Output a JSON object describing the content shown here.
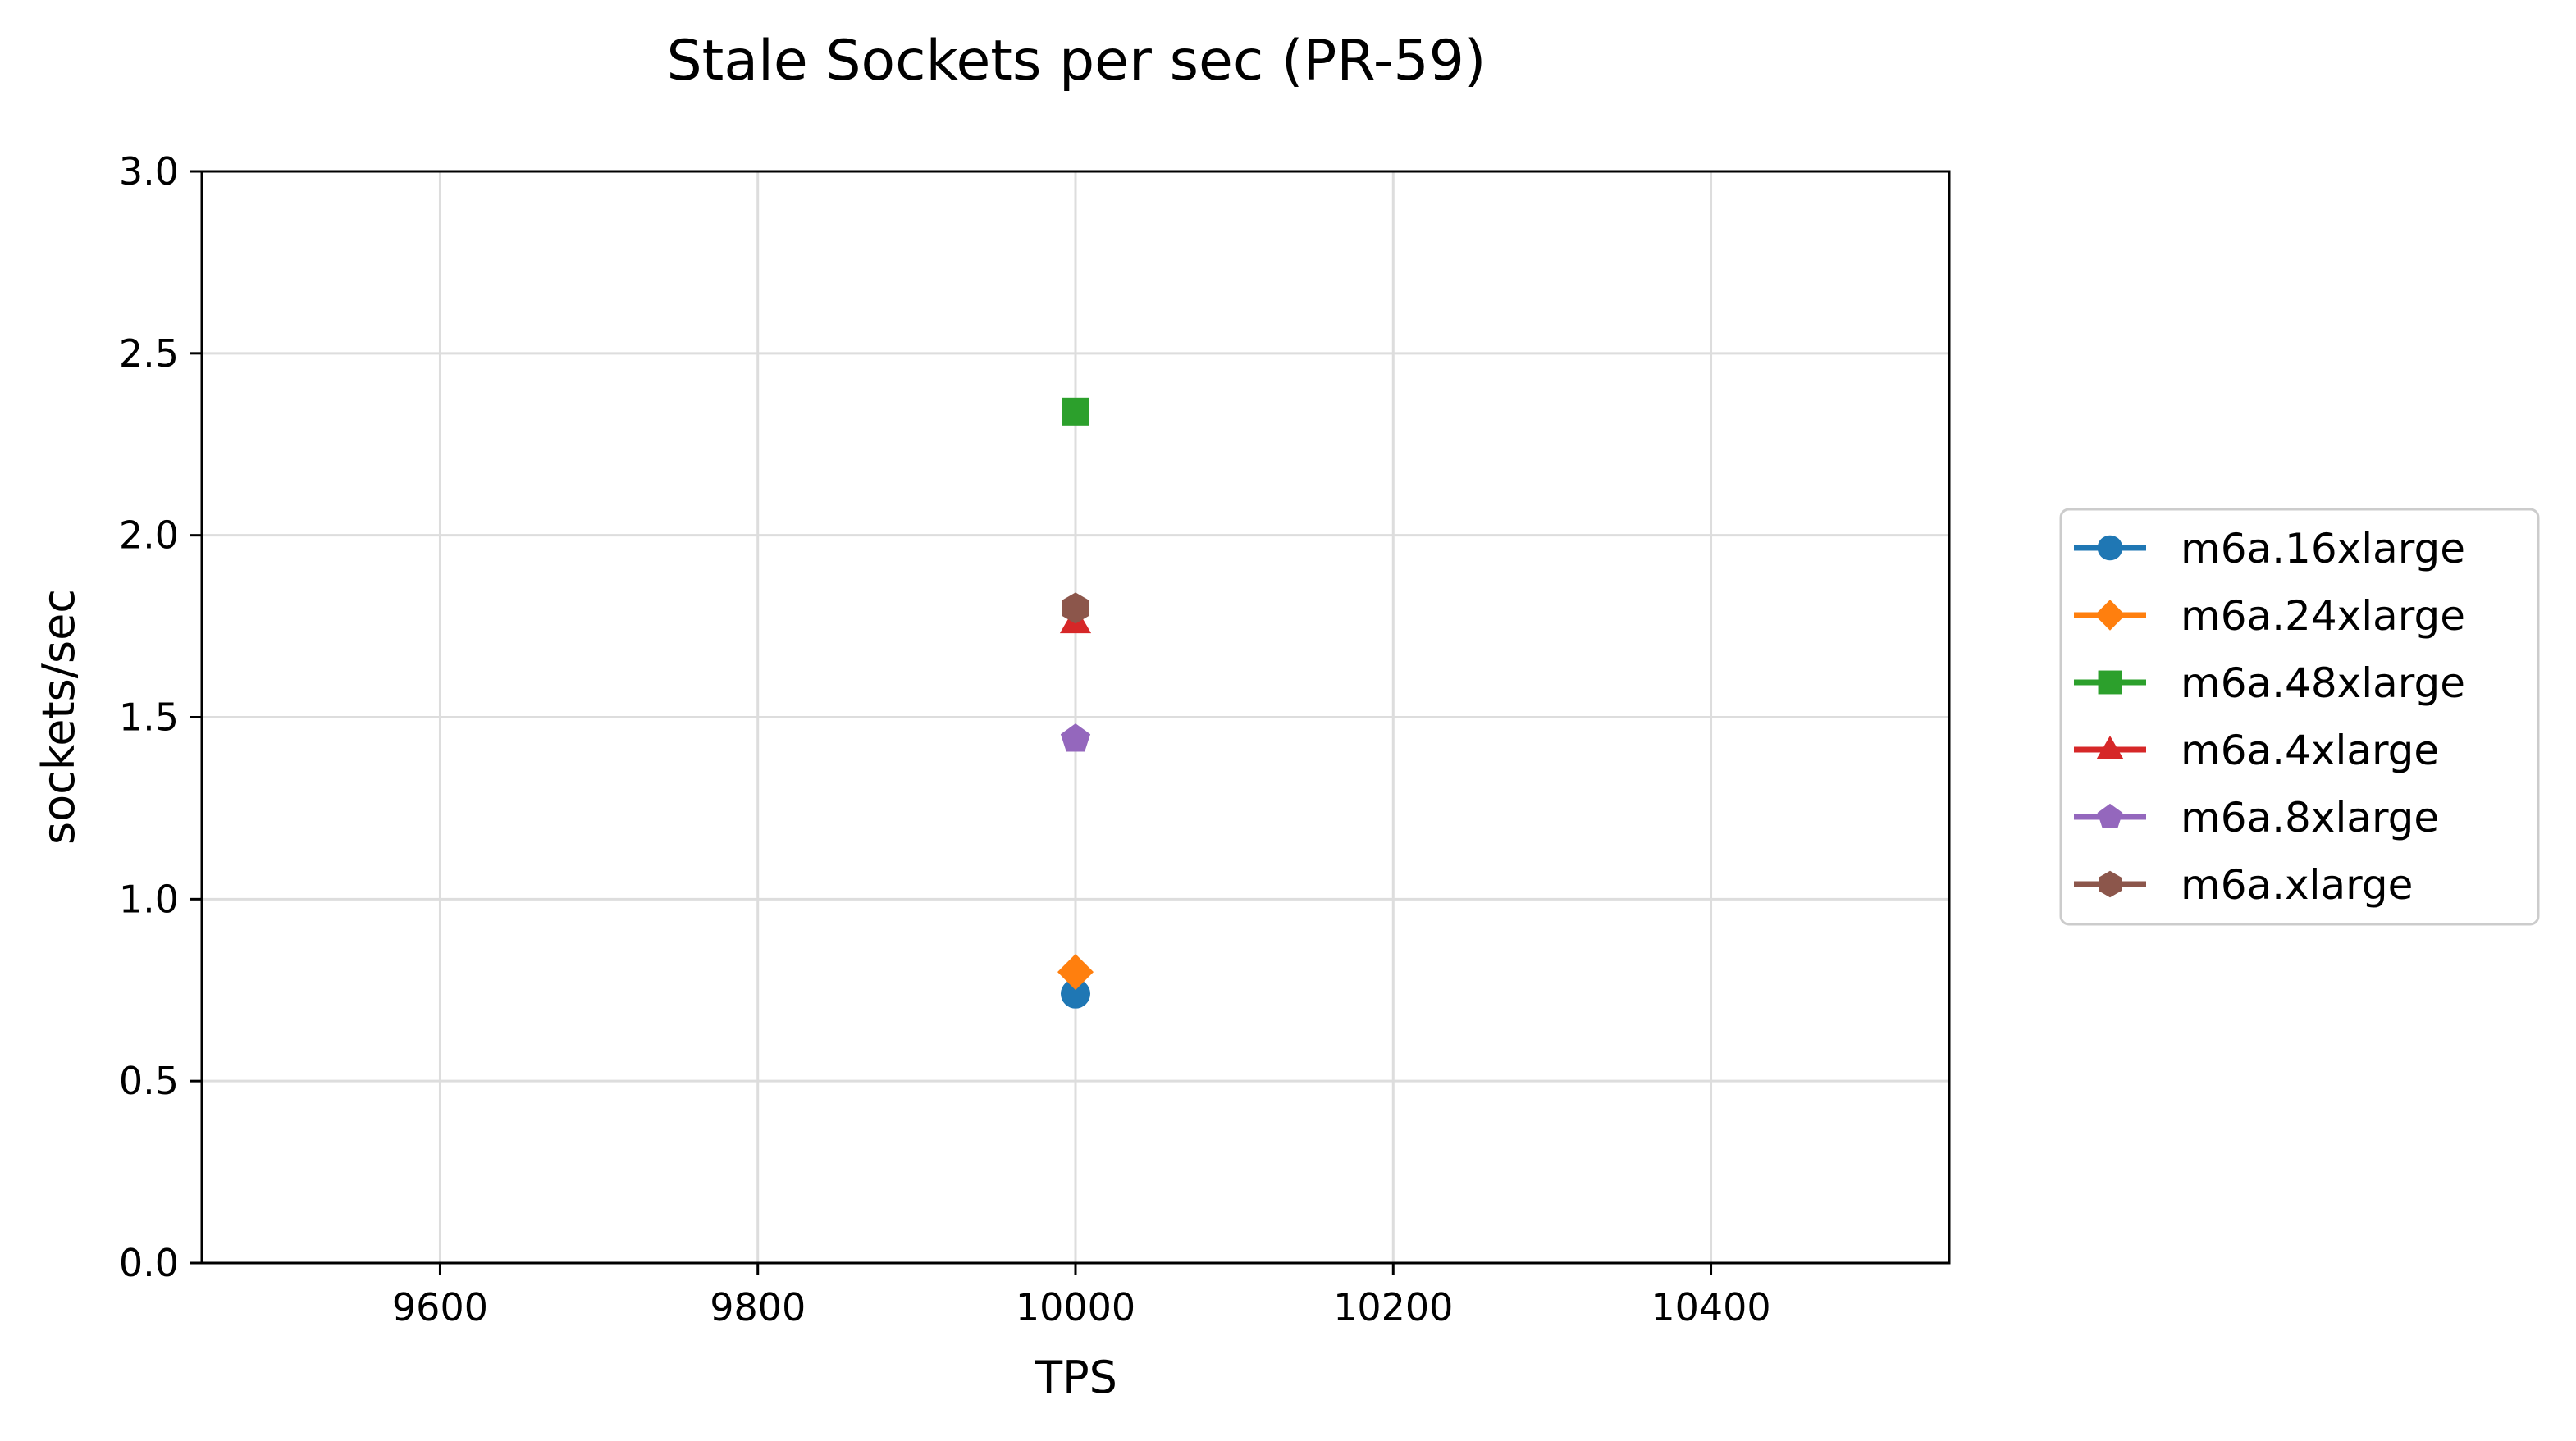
{
  "chart_data": {
    "type": "scatter",
    "title": "Stale Sockets per sec (PR-59)",
    "xlabel": "TPS",
    "ylabel": "sockets/sec",
    "xlim": [
      9450,
      10550
    ],
    "ylim": [
      0,
      3.0
    ],
    "x_ticks": [
      9600,
      9800,
      10000,
      10200,
      10400
    ],
    "y_ticks": [
      0.0,
      0.5,
      1.0,
      1.5,
      2.0,
      2.5,
      3.0
    ],
    "y_tick_labels": [
      "0.0",
      "0.5",
      "1.0",
      "1.5",
      "2.0",
      "2.5",
      "3.0"
    ],
    "grid": true,
    "legend_position": "right, outside plot",
    "series": [
      {
        "name": "m6a.16xlarge",
        "color": "#1f77b4",
        "marker": "circle",
        "x": [
          10000
        ],
        "y": [
          0.74
        ]
      },
      {
        "name": "m6a.24xlarge",
        "color": "#ff7f0e",
        "marker": "diamond",
        "x": [
          10000
        ],
        "y": [
          0.8
        ]
      },
      {
        "name": "m6a.48xlarge",
        "color": "#2ca02c",
        "marker": "square",
        "x": [
          10000
        ],
        "y": [
          2.34
        ]
      },
      {
        "name": "m6a.4xlarge",
        "color": "#d62728",
        "marker": "triangle",
        "x": [
          10000
        ],
        "y": [
          1.76
        ]
      },
      {
        "name": "m6a.8xlarge",
        "color": "#9467bd",
        "marker": "pentagon",
        "x": [
          10000
        ],
        "y": [
          1.44
        ]
      },
      {
        "name": "m6a.xlarge",
        "color": "#8c564b",
        "marker": "hexagon",
        "x": [
          10000
        ],
        "y": [
          1.8
        ]
      }
    ]
  }
}
